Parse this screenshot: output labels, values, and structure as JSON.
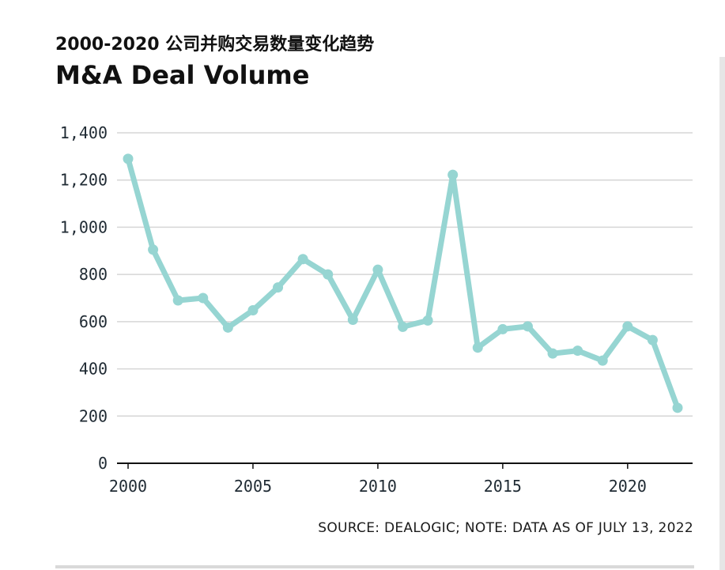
{
  "supertitle": "2000-2020 公司并购交易数量变化趋势",
  "title": "M&A Deal Volume",
  "source_note": "SOURCE: DEALOGIC; NOTE: DATA AS OF JULY 13, 2022",
  "colors": {
    "line": "#96d5d2",
    "grid": "#d6d6d6",
    "axis": "#111111"
  },
  "chart_data": {
    "type": "line",
    "title": "M&A Deal Volume",
    "xlabel": "",
    "ylabel": "",
    "x": [
      2000,
      2001,
      2002,
      2003,
      2004,
      2005,
      2006,
      2007,
      2008,
      2009,
      2010,
      2011,
      2012,
      2013,
      2014,
      2015,
      2016,
      2017,
      2018,
      2019,
      2020,
      2021,
      2022
    ],
    "series": [
      {
        "values": [
          1290,
          905,
          690,
          700,
          575,
          648,
          745,
          865,
          800,
          608,
          820,
          578,
          605,
          1222,
          490,
          568,
          580,
          465,
          477,
          435,
          580,
          522,
          235
        ]
      }
    ],
    "xlim": [
      2000,
      2022
    ],
    "ylim": [
      0,
      1400
    ],
    "xticks": [
      2000,
      2005,
      2010,
      2015,
      2020
    ],
    "yticks": [
      0,
      200,
      400,
      600,
      800,
      1000,
      1200,
      1400
    ],
    "ytick_labels": [
      "0",
      "200",
      "400",
      "600",
      "800",
      "1,000",
      "1,200",
      "1,400"
    ],
    "grid": true,
    "legend": "none"
  }
}
